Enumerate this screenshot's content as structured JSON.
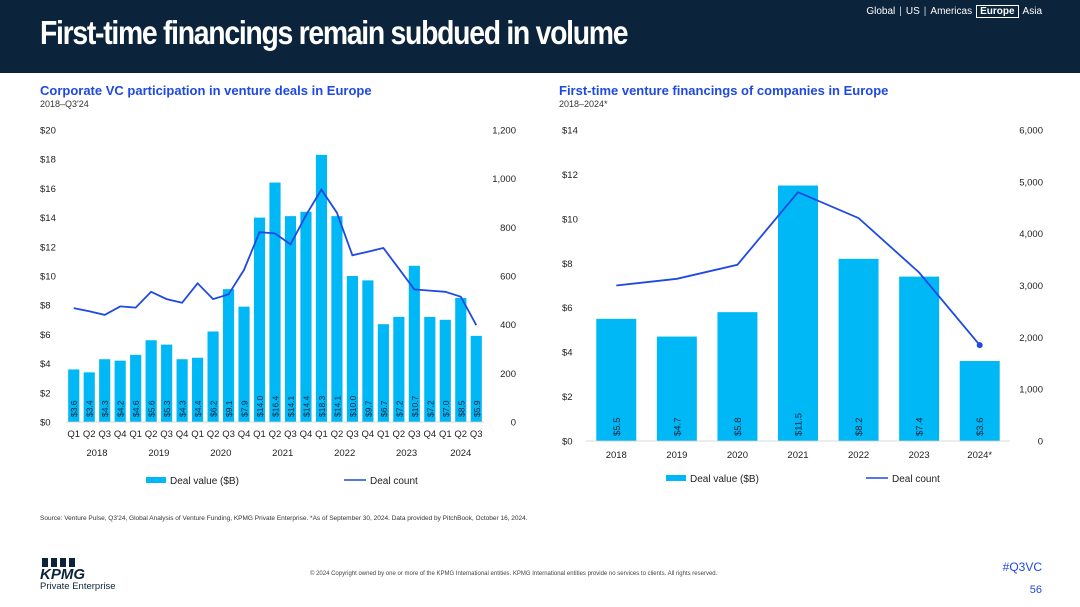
{
  "header": {
    "title": "First-time financings remain subdued in volume",
    "regions": [
      "Global",
      "US",
      "Americas",
      "Europe",
      "Asia"
    ],
    "active_region": "Europe"
  },
  "colors": {
    "bar": "#00b8f5",
    "line": "#1e49e2",
    "header": "#0c233c",
    "title": "#1e49e2"
  },
  "chart_data": [
    {
      "type": "bar+line",
      "title": "Corporate VC participation in venture deals in Europe",
      "subtitle": "2018–Q3'24",
      "y_left_ticks": [
        "$0",
        "$2",
        "$4",
        "$6",
        "$8",
        "$10",
        "$12",
        "$14",
        "$16",
        "$18",
        "$20"
      ],
      "y_left_range": [
        0,
        20
      ],
      "y_right_ticks": [
        "0",
        "200",
        "400",
        "600",
        "800",
        "1,000",
        "1,200"
      ],
      "y_right_range": [
        0,
        1200
      ],
      "quarters": [
        "Q1",
        "Q2",
        "Q3",
        "Q4",
        "Q1",
        "Q2",
        "Q3",
        "Q4",
        "Q1",
        "Q2",
        "Q3",
        "Q4",
        "Q1",
        "Q2",
        "Q3",
        "Q4",
        "Q1",
        "Q2",
        "Q3",
        "Q4",
        "Q1",
        "Q2",
        "Q3",
        "Q4",
        "Q1",
        "Q2",
        "Q3"
      ],
      "years": [
        {
          "label": "2018",
          "start": 0,
          "end": 3
        },
        {
          "label": "2019",
          "start": 4,
          "end": 7
        },
        {
          "label": "2020",
          "start": 8,
          "end": 11
        },
        {
          "label": "2021",
          "start": 12,
          "end": 15
        },
        {
          "label": "2022",
          "start": 16,
          "end": 19
        },
        {
          "label": "2023",
          "start": 20,
          "end": 23
        },
        {
          "label": "2024",
          "start": 24,
          "end": 26
        }
      ],
      "bar_values": [
        3.6,
        3.4,
        4.3,
        4.2,
        4.6,
        5.6,
        5.3,
        4.3,
        4.4,
        6.2,
        9.1,
        7.9,
        14.0,
        16.4,
        14.1,
        14.4,
        18.3,
        14.1,
        10.0,
        9.7,
        6.7,
        7.2,
        10.7,
        7.2,
        7.0,
        8.5,
        5.9
      ],
      "bar_labels": [
        "$3.6",
        "$3.4",
        "$4.3",
        "$4.2",
        "$4.6",
        "$5.6",
        "$5.3",
        "$4.3",
        "$4.4",
        "$6.2",
        "$9.1",
        "$7.9",
        "$14.0",
        "$16.4",
        "$14.1",
        "$14.4",
        "$18.3",
        "$14.1",
        "$10.0",
        "$9.7",
        "$6.7",
        "$7.2",
        "$10.7",
        "$7.2",
        "$7.0",
        "$8.5",
        "$5.9"
      ],
      "line_values": [
        468,
        455,
        440,
        475,
        470,
        535,
        505,
        490,
        570,
        505,
        525,
        625,
        780,
        775,
        730,
        850,
        955,
        860,
        685,
        700,
        715,
        630,
        545,
        540,
        535,
        515,
        398
      ],
      "legend": {
        "bar": "Deal value ($B)",
        "line": "Deal count"
      }
    },
    {
      "type": "bar+line",
      "title": "First-time venture financings of companies in Europe",
      "subtitle": "2018–2024*",
      "y_left_ticks": [
        "$0",
        "$2",
        "$4",
        "$6",
        "$8",
        "$10",
        "$12",
        "$14"
      ],
      "y_left_range": [
        0,
        14
      ],
      "y_right_ticks": [
        "0",
        "1,000",
        "2,000",
        "3,000",
        "4,000",
        "5,000",
        "6,000"
      ],
      "y_right_range": [
        0,
        6000
      ],
      "categories": [
        "2018",
        "2019",
        "2020",
        "2021",
        "2022",
        "2023",
        "2024*"
      ],
      "bar_values": [
        5.5,
        4.7,
        5.8,
        11.5,
        8.2,
        7.4,
        3.6
      ],
      "bar_labels": [
        "$5.5",
        "$4.7",
        "$5.8",
        "$11.5",
        "$8.2",
        "$7.4",
        "$3.6"
      ],
      "line_values": [
        3000,
        3130,
        3400,
        4800,
        4300,
        3250,
        1850
      ],
      "legend": {
        "bar": "Deal value ($B)",
        "line": "Deal count"
      }
    }
  ],
  "footer": {
    "source": "Source: Venture Pulse, Q3'24, Global Analysis of Venture Funding, KPMG Private Enterprise. *As of September 30, 2024. Data provided by PitchBook, October 16, 2024.",
    "copyright": "© 2024 Copyright owned by one or more of the KPMG International entities. KPMG International entities provide no services to clients. All rights reserved.",
    "hashtag": "#Q3VC",
    "page": "56",
    "logo_text": "KPMG",
    "logo_sub": "Private Enterprise"
  }
}
